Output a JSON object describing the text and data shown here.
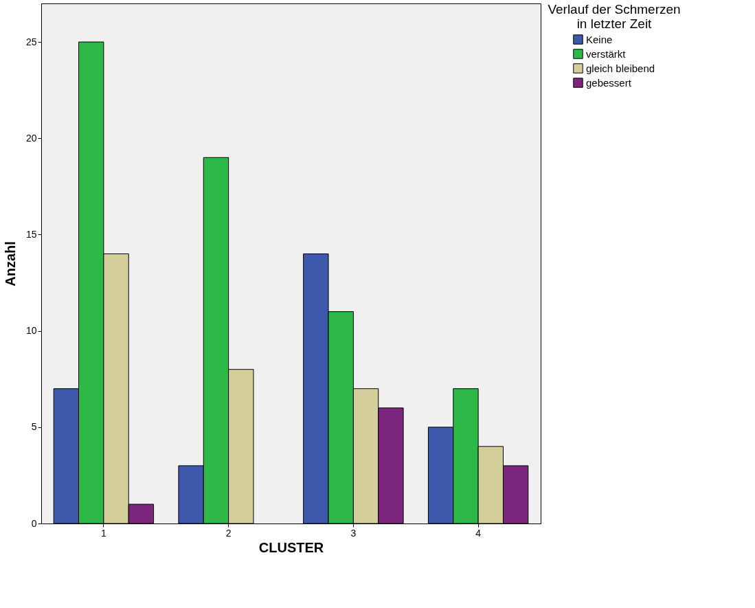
{
  "chart_data": {
    "type": "bar",
    "xlabel": "CLUSTER",
    "ylabel": "Anzahl",
    "legend_title": "Verlauf der Schmerzen in letzter Zeit",
    "categories": [
      "1",
      "2",
      "3",
      "4"
    ],
    "series": [
      {
        "name": "Keine",
        "color": "#3e58ac",
        "values": [
          7,
          3,
          14,
          5
        ]
      },
      {
        "name": "verstärkt",
        "color": "#2eb848",
        "values": [
          25,
          19,
          11,
          7
        ]
      },
      {
        "name": "gleich bleibend",
        "color": "#d4cf9a",
        "values": [
          14,
          8,
          7,
          4
        ]
      },
      {
        "name": "gebessert",
        "color": "#7c277d",
        "values": [
          1,
          null,
          6,
          3
        ]
      }
    ],
    "ylim": [
      0,
      27
    ],
    "yticks": [
      0,
      5,
      10,
      15,
      20,
      25
    ],
    "grid": false,
    "legend": "right"
  }
}
